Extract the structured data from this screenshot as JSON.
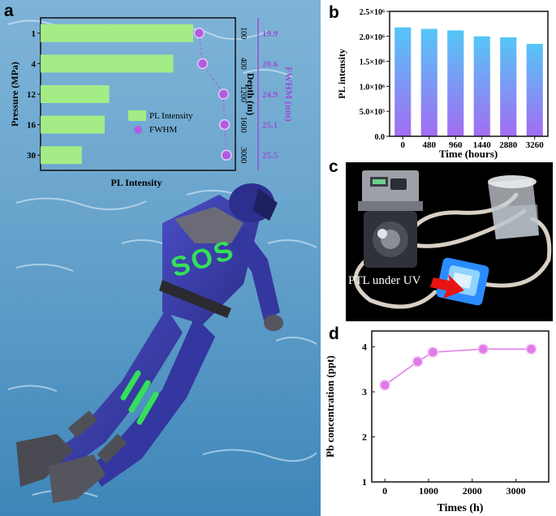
{
  "panel_letters": {
    "a": "a",
    "b": "b",
    "c": "c",
    "d": "d"
  },
  "colors": {
    "water": "#6aa7cf",
    "bar_green": "#a4ec86",
    "fwhm_purple": "#b05de0",
    "bar_blue": "#55c6f7",
    "bar_purple": "#a36cf2",
    "pb_pink": "#e07ae8",
    "diver_suit": "#3f42b0",
    "sos_green": "#34e05a"
  },
  "scene_a": {
    "sos_text": "SOS",
    "icons": [
      "diver-illustration",
      "water-background"
    ]
  },
  "photo_c": {
    "annotation": "PTL under UV",
    "icons": [
      "peristaltic-pump",
      "beaker",
      "uv-sample-cell",
      "red-arrow"
    ]
  },
  "chart_data": [
    {
      "id": "a",
      "type": "bar",
      "orientation": "horizontal",
      "categories": [
        "1",
        "4",
        "12",
        "16",
        "30"
      ],
      "ylabel": "Pressure (MPa)",
      "xlabel": "PL Intensity",
      "series": [
        {
          "name": "PL Intensity",
          "values": [
            1.0,
            0.87,
            0.45,
            0.42,
            0.27
          ]
        },
        {
          "name": "FWHM",
          "values": [
            19.9,
            20.6,
            24.9,
            25.1,
            25.5
          ]
        }
      ],
      "depth_label": "Depth (m)",
      "depth_ticks": [
        "100",
        "400",
        "1200",
        "1600",
        "3000"
      ],
      "fwhm_label": "FWHM (nm)",
      "fwhm_labels": [
        "19.9",
        "20.6",
        "24.9",
        "25.1",
        "25.5"
      ]
    },
    {
      "id": "b",
      "type": "bar",
      "categories": [
        "0",
        "480",
        "960",
        "1440",
        "2880",
        "3260"
      ],
      "values": [
        2180000,
        2150000,
        2120000,
        2000000,
        1980000,
        1850000
      ],
      "xlabel": "Time (hours)",
      "ylabel": "PL intensity",
      "ylim": [
        0,
        2500000
      ],
      "yticks": [
        "0.0",
        "5.0×10⁵",
        "1.0×10⁶",
        "1.5×10⁶",
        "2.0×10⁶",
        "2.5×10⁶"
      ]
    },
    {
      "id": "d",
      "type": "line",
      "x": [
        0,
        750,
        1100,
        2250,
        3350
      ],
      "y": [
        3.15,
        3.67,
        3.88,
        3.95,
        3.95
      ],
      "xlabel": "Times (h)",
      "ylabel": "Pb concentration (ppt)",
      "xlim": [
        -300,
        3750
      ],
      "ylim": [
        1,
        4.35
      ],
      "xticks": [
        "0",
        "1000",
        "2000",
        "3000"
      ],
      "yticks": [
        "1",
        "2",
        "3",
        "4"
      ]
    }
  ]
}
